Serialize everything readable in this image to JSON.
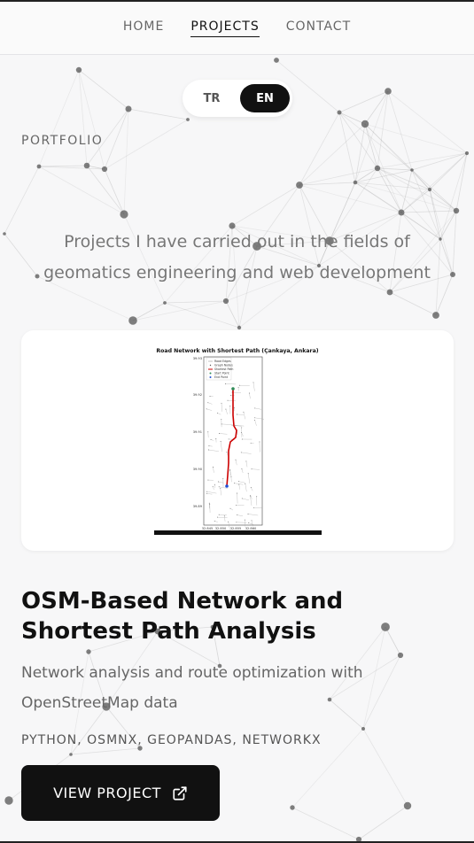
{
  "nav": {
    "items": [
      {
        "label": "HOME",
        "active": false
      },
      {
        "label": "PROJECTS",
        "active": true
      },
      {
        "label": "CONTACT",
        "active": false
      }
    ]
  },
  "language": {
    "options": [
      "TR",
      "EN"
    ],
    "selected": "EN"
  },
  "hero": {
    "eyebrow": "PORTFOLIO",
    "subtitle": "Projects I have carried out in the fields of geomatics engineering and web development"
  },
  "project": {
    "thumbnail": {
      "title": "Road Network with Shortest Path (Çankaya, Ankara)",
      "legend": [
        "Road Edges",
        "Graph Nodes",
        "Shortest Path",
        "Start Point",
        "End Point"
      ],
      "y_ticks": [
        "39.93",
        "39.92",
        "39.91",
        "39.90",
        "39.89"
      ],
      "x_ticks": [
        "32.845",
        "32.850",
        "32.855",
        "32.860"
      ]
    },
    "title": "OSM-Based Network and Shortest Path Analysis",
    "description": "Network analysis and route optimization with OpenStreetMap data",
    "tags": "PYTHON, OSMNX, GEOPANDAS, NETWORKX",
    "button_label": "VIEW PROJECT"
  },
  "colors": {
    "accent": "#111111",
    "path": "#cc0000",
    "start": "#2e8b57",
    "end": "#1f4fd6"
  },
  "icons": {
    "external_link": "external-link-icon"
  }
}
